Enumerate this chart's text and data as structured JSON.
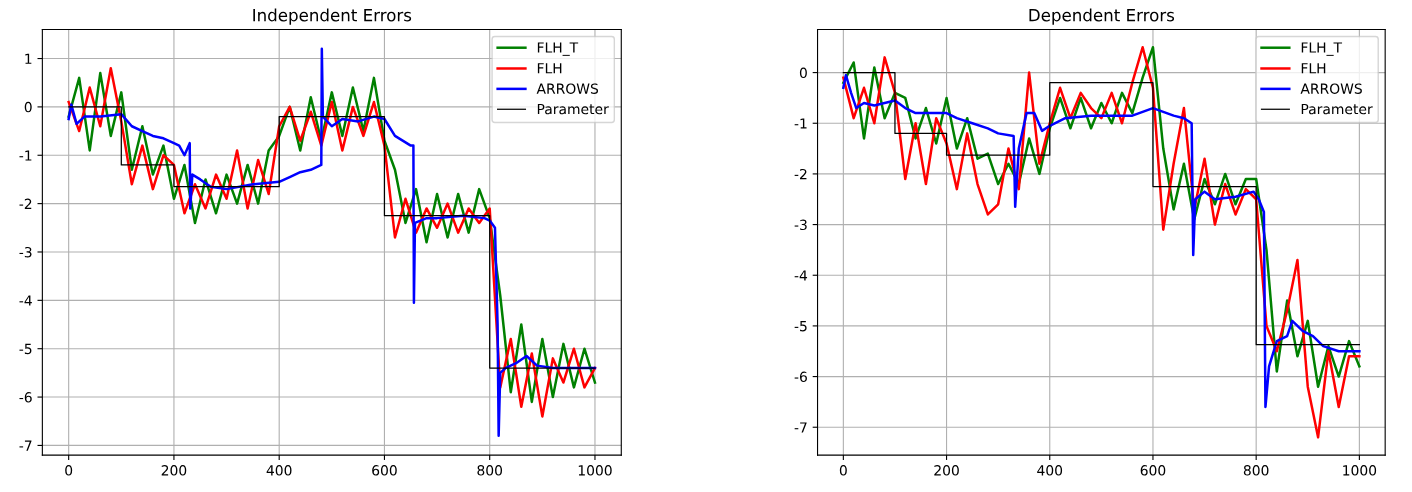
{
  "chart_data": [
    {
      "type": "line",
      "title": "Independent Errors",
      "xlim": [
        -50,
        1050
      ],
      "ylim": [
        -7.2,
        1.6
      ],
      "xticks": [
        0,
        200,
        400,
        600,
        800,
        1000
      ],
      "yticks": [
        -7,
        -6,
        -5,
        -4,
        -3,
        -2,
        -1,
        0,
        1
      ],
      "grid": true,
      "legend": "top right",
      "series": [
        {
          "name": "FLH_T",
          "color": "#008000",
          "x": [
            0,
            20,
            40,
            60,
            80,
            100,
            120,
            140,
            160,
            180,
            200,
            220,
            240,
            260,
            280,
            300,
            320,
            340,
            360,
            380,
            400,
            420,
            440,
            460,
            480,
            500,
            520,
            540,
            560,
            580,
            600,
            620,
            640,
            660,
            680,
            700,
            720,
            740,
            760,
            780,
            800,
            820,
            840,
            860,
            880,
            900,
            920,
            940,
            960,
            980,
            1000
          ],
          "values": [
            -0.2,
            0.6,
            -0.9,
            0.7,
            -0.6,
            0.3,
            -1.3,
            -0.4,
            -1.4,
            -0.8,
            -1.9,
            -1.2,
            -2.4,
            -1.5,
            -2.2,
            -1.4,
            -2.0,
            -1.2,
            -2.0,
            -0.9,
            -0.6,
            0.0,
            -0.9,
            0.2,
            -0.7,
            0.3,
            -0.6,
            0.4,
            -0.5,
            0.6,
            -0.7,
            -1.3,
            -2.4,
            -1.7,
            -2.8,
            -1.8,
            -2.7,
            -1.8,
            -2.6,
            -1.7,
            -2.3,
            -3.9,
            -5.9,
            -4.5,
            -6.1,
            -4.8,
            -6.0,
            -4.9,
            -5.8,
            -5.0,
            -5.7
          ]
        },
        {
          "name": "FLH",
          "color": "#ff0000",
          "x": [
            0,
            20,
            40,
            60,
            80,
            100,
            120,
            140,
            160,
            180,
            200,
            220,
            240,
            260,
            280,
            300,
            320,
            340,
            360,
            380,
            400,
            420,
            440,
            460,
            480,
            500,
            520,
            540,
            560,
            580,
            600,
            620,
            640,
            660,
            680,
            700,
            720,
            740,
            760,
            780,
            800,
            820,
            840,
            860,
            880,
            900,
            920,
            940,
            960,
            980,
            1000
          ],
          "values": [
            0.1,
            -0.5,
            0.4,
            -0.4,
            0.8,
            -0.3,
            -1.6,
            -0.8,
            -1.7,
            -1.0,
            -1.2,
            -2.2,
            -1.6,
            -2.1,
            -1.4,
            -1.9,
            -0.9,
            -2.1,
            -1.1,
            -1.8,
            -0.4,
            0.0,
            -0.7,
            -0.1,
            -0.8,
            0.1,
            -0.9,
            0.0,
            -0.6,
            0.1,
            -0.8,
            -2.7,
            -1.9,
            -2.6,
            -2.1,
            -2.5,
            -2.0,
            -2.6,
            -2.1,
            -2.4,
            -2.1,
            -5.8,
            -4.8,
            -6.2,
            -5.1,
            -6.4,
            -5.2,
            -5.7,
            -5.0,
            -5.8,
            -5.4
          ]
        },
        {
          "name": "ARROWS",
          "color": "#0000ff",
          "x": [
            0,
            5,
            15,
            30,
            60,
            100,
            120,
            140,
            160,
            180,
            200,
            210,
            220,
            230,
            231,
            235,
            250,
            270,
            300,
            350,
            400,
            420,
            440,
            460,
            480,
            481,
            483,
            500,
            520,
            550,
            580,
            600,
            620,
            650,
            655,
            656,
            658,
            680,
            700,
            750,
            790,
            800,
            810,
            815,
            817,
            820,
            830,
            850,
            870,
            890,
            920,
            1000
          ],
          "values": [
            -0.25,
            0.05,
            -0.35,
            -0.2,
            -0.2,
            -0.15,
            -0.4,
            -0.5,
            -0.6,
            -0.65,
            -0.75,
            -0.8,
            -1.0,
            -0.75,
            -2.1,
            -1.4,
            -1.5,
            -1.65,
            -1.7,
            -1.6,
            -1.55,
            -1.45,
            -1.35,
            -1.3,
            -1.2,
            1.2,
            -0.2,
            -0.4,
            -0.25,
            -0.3,
            -0.2,
            -0.25,
            -0.6,
            -0.8,
            -0.8,
            -4.05,
            -2.4,
            -2.3,
            -2.3,
            -2.25,
            -2.3,
            -2.35,
            -2.5,
            -4.5,
            -6.8,
            -5.5,
            -5.4,
            -5.3,
            -5.15,
            -5.35,
            -5.4,
            -5.4
          ]
        },
        {
          "name": "Parameter",
          "type": "step",
          "color": "#000000",
          "x": [
            0,
            100,
            200,
            400,
            600,
            800,
            1000
          ],
          "values": [
            0,
            -1.2,
            -1.65,
            -0.2,
            -2.25,
            -5.4,
            -5.4
          ]
        }
      ]
    },
    {
      "type": "line",
      "title": "Dependent Errors",
      "xlim": [
        -50,
        1050
      ],
      "ylim": [
        -7.55,
        0.85
      ],
      "xticks": [
        0,
        200,
        400,
        600,
        800,
        1000
      ],
      "yticks": [
        -7,
        -6,
        -5,
        -4,
        -3,
        -2,
        -1,
        0
      ],
      "grid": true,
      "legend": "top right",
      "series": [
        {
          "name": "FLH_T",
          "color": "#008000",
          "x": [
            0,
            20,
            40,
            60,
            80,
            100,
            120,
            140,
            160,
            180,
            200,
            220,
            240,
            260,
            280,
            300,
            320,
            340,
            360,
            380,
            400,
            420,
            440,
            460,
            480,
            500,
            520,
            540,
            560,
            580,
            600,
            620,
            640,
            660,
            680,
            700,
            720,
            740,
            760,
            780,
            800,
            820,
            840,
            860,
            880,
            900,
            920,
            940,
            960,
            980,
            1000
          ],
          "values": [
            -0.2,
            0.2,
            -1.3,
            0.1,
            -0.9,
            -0.4,
            -0.5,
            -1.3,
            -0.7,
            -1.4,
            -0.5,
            -1.5,
            -0.9,
            -1.7,
            -1.6,
            -2.2,
            -1.8,
            -2.2,
            -1.3,
            -2.0,
            -1.1,
            -0.5,
            -1.1,
            -0.5,
            -1.1,
            -0.6,
            -1.0,
            -0.4,
            -0.8,
            -0.1,
            0.5,
            -1.5,
            -2.7,
            -1.8,
            -2.9,
            -2.1,
            -2.6,
            -2.0,
            -2.6,
            -2.1,
            -2.1,
            -3.5,
            -5.9,
            -4.5,
            -5.6,
            -4.9,
            -6.2,
            -5.4,
            -6.0,
            -5.3,
            -5.8
          ]
        },
        {
          "name": "FLH",
          "color": "#ff0000",
          "x": [
            0,
            20,
            40,
            60,
            80,
            100,
            120,
            140,
            160,
            180,
            200,
            220,
            240,
            260,
            280,
            300,
            320,
            340,
            360,
            380,
            400,
            420,
            440,
            460,
            480,
            500,
            520,
            540,
            560,
            580,
            600,
            620,
            640,
            660,
            680,
            700,
            720,
            740,
            760,
            780,
            800,
            820,
            840,
            860,
            880,
            900,
            920,
            940,
            960,
            980,
            1000
          ],
          "values": [
            -0.1,
            -0.9,
            -0.3,
            -1.0,
            0.3,
            -0.4,
            -2.1,
            -1.0,
            -2.2,
            -0.9,
            -1.4,
            -2.3,
            -1.2,
            -2.2,
            -2.8,
            -2.6,
            -1.5,
            -2.3,
            0.0,
            -1.8,
            -1.0,
            -0.3,
            -0.9,
            -0.4,
            -0.7,
            -0.9,
            -0.4,
            -1.0,
            -0.2,
            0.5,
            -0.3,
            -3.1,
            -1.8,
            -0.7,
            -2.7,
            -1.7,
            -3.0,
            -2.2,
            -2.8,
            -2.3,
            -2.5,
            -5.0,
            -5.5,
            -4.7,
            -3.7,
            -6.2,
            -7.2,
            -5.5,
            -6.6,
            -5.6,
            -5.6
          ]
        },
        {
          "name": "ARROWS",
          "color": "#0000ff",
          "x": [
            0,
            5,
            15,
            25,
            40,
            60,
            80,
            100,
            120,
            140,
            200,
            220,
            250,
            280,
            300,
            330,
            333,
            340,
            355,
            370,
            385,
            400,
            430,
            480,
            520,
            560,
            600,
            640,
            660,
            675,
            678,
            682,
            700,
            720,
            760,
            795,
            805,
            815,
            818,
            825,
            840,
            860,
            870,
            890,
            910,
            930,
            960,
            1000
          ],
          "values": [
            -0.3,
            -0.05,
            -0.4,
            -0.7,
            -0.6,
            -0.65,
            -0.6,
            -0.55,
            -0.7,
            -0.8,
            -0.8,
            -0.9,
            -1.0,
            -1.1,
            -1.2,
            -1.25,
            -2.65,
            -1.5,
            -0.8,
            -0.8,
            -1.15,
            -1.05,
            -0.9,
            -0.85,
            -0.85,
            -0.85,
            -0.7,
            -0.85,
            -0.9,
            -1.0,
            -3.6,
            -2.5,
            -2.35,
            -2.5,
            -2.45,
            -2.35,
            -2.5,
            -2.75,
            -6.6,
            -5.8,
            -5.3,
            -5.2,
            -4.9,
            -5.1,
            -5.2,
            -5.4,
            -5.5,
            -5.5
          ]
        },
        {
          "name": "Parameter",
          "type": "step",
          "color": "#000000",
          "x": [
            0,
            100,
            200,
            400,
            600,
            800,
            1000
          ],
          "values": [
            0,
            -1.2,
            -1.63,
            -0.2,
            -2.25,
            -5.37,
            -5.37
          ]
        }
      ]
    }
  ]
}
